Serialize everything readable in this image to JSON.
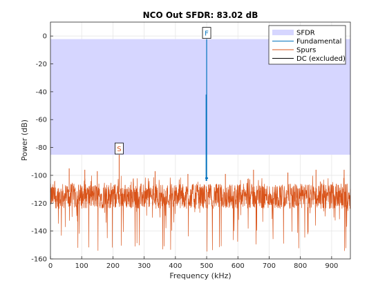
{
  "chart_data": {
    "type": "line",
    "title": "NCO Out SFDR:  83.02 dB",
    "xlabel": "Frequency (kHz)",
    "ylabel": "Power (dB)",
    "xlim": [
      0,
      960
    ],
    "ylim": [
      -160,
      10
    ],
    "xticks": [
      "0",
      "100",
      "200",
      "300",
      "400",
      "500",
      "600",
      "700",
      "800",
      "900"
    ],
    "yticks": [
      "0",
      "-20",
      "-40",
      "-60",
      "-80",
      "-100",
      "-120",
      "-140",
      "-160"
    ],
    "grid": true,
    "legend_position": "top-right",
    "sfdr_band": {
      "name": "SFDR",
      "y_low": -85.2,
      "y_high": -2.2,
      "color": "#d6d6ff"
    },
    "fundamental": {
      "name": "Fundamental",
      "x": 500,
      "y": -2.2,
      "color": "#0072bd",
      "marker": "F"
    },
    "spur_marker": {
      "marker": "S",
      "x": 220,
      "y": -85.2,
      "color": "#d95319"
    },
    "noise_floor": {
      "name": "Spurs",
      "mean": -115,
      "color": "#d95319"
    },
    "dc": {
      "name": "DC (excluded)",
      "color": "#000000"
    },
    "spurs": [
      {
        "x": 60,
        "y": -95
      },
      {
        "x": 110,
        "y": -96
      },
      {
        "x": 150,
        "y": -97
      },
      {
        "x": 220,
        "y": -85.2
      },
      {
        "x": 335,
        "y": -97
      },
      {
        "x": 440,
        "y": -99
      },
      {
        "x": 560,
        "y": -99
      },
      {
        "x": 650,
        "y": -96
      },
      {
        "x": 760,
        "y": -98
      },
      {
        "x": 850,
        "y": -96
      },
      {
        "x": 940,
        "y": -96
      }
    ],
    "series": [
      {
        "name": "SFDR"
      },
      {
        "name": "Fundamental"
      },
      {
        "name": "Spurs"
      },
      {
        "name": "DC (excluded)"
      }
    ]
  }
}
